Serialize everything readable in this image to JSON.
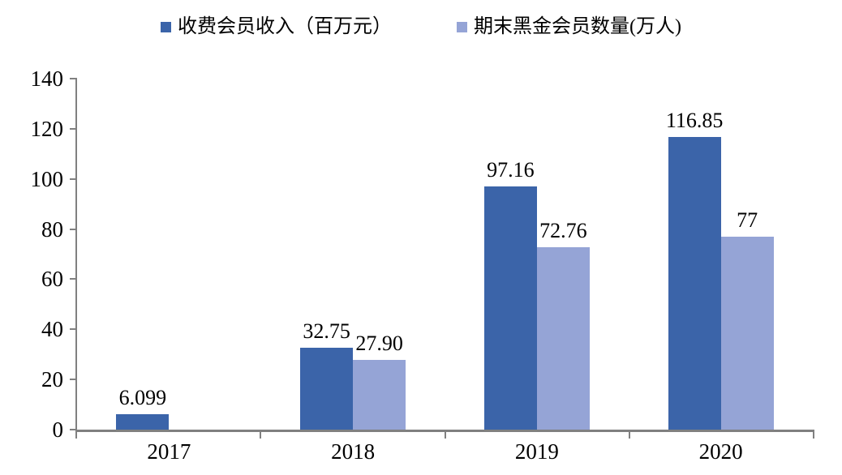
{
  "chart_data": {
    "type": "bar",
    "title": "",
    "categories": [
      "2017",
      "2018",
      "2019",
      "2020"
    ],
    "series": [
      {
        "name": "收费会员收入（百万元）",
        "color": "#3B64A9",
        "values": [
          6.099,
          32.75,
          97.16,
          116.85
        ],
        "value_labels": [
          "6.099",
          "32.75",
          "97.16",
          "116.85"
        ]
      },
      {
        "name": "期末黑金会员数量(万人)",
        "color": "#95A4D6",
        "values": [
          0,
          27.9,
          72.76,
          77
        ],
        "value_labels": [
          null,
          "27.90",
          "72.76",
          "77"
        ]
      }
    ],
    "xlabel": "",
    "ylabel": "",
    "ylim": [
      0,
      140
    ],
    "yticks": [
      0,
      20,
      40,
      60,
      80,
      100,
      120,
      140
    ],
    "grid": false,
    "legend_position": "top-center",
    "axis_color": "#808080",
    "text_color": "#000000",
    "background_color": "#FFFFFF"
  }
}
